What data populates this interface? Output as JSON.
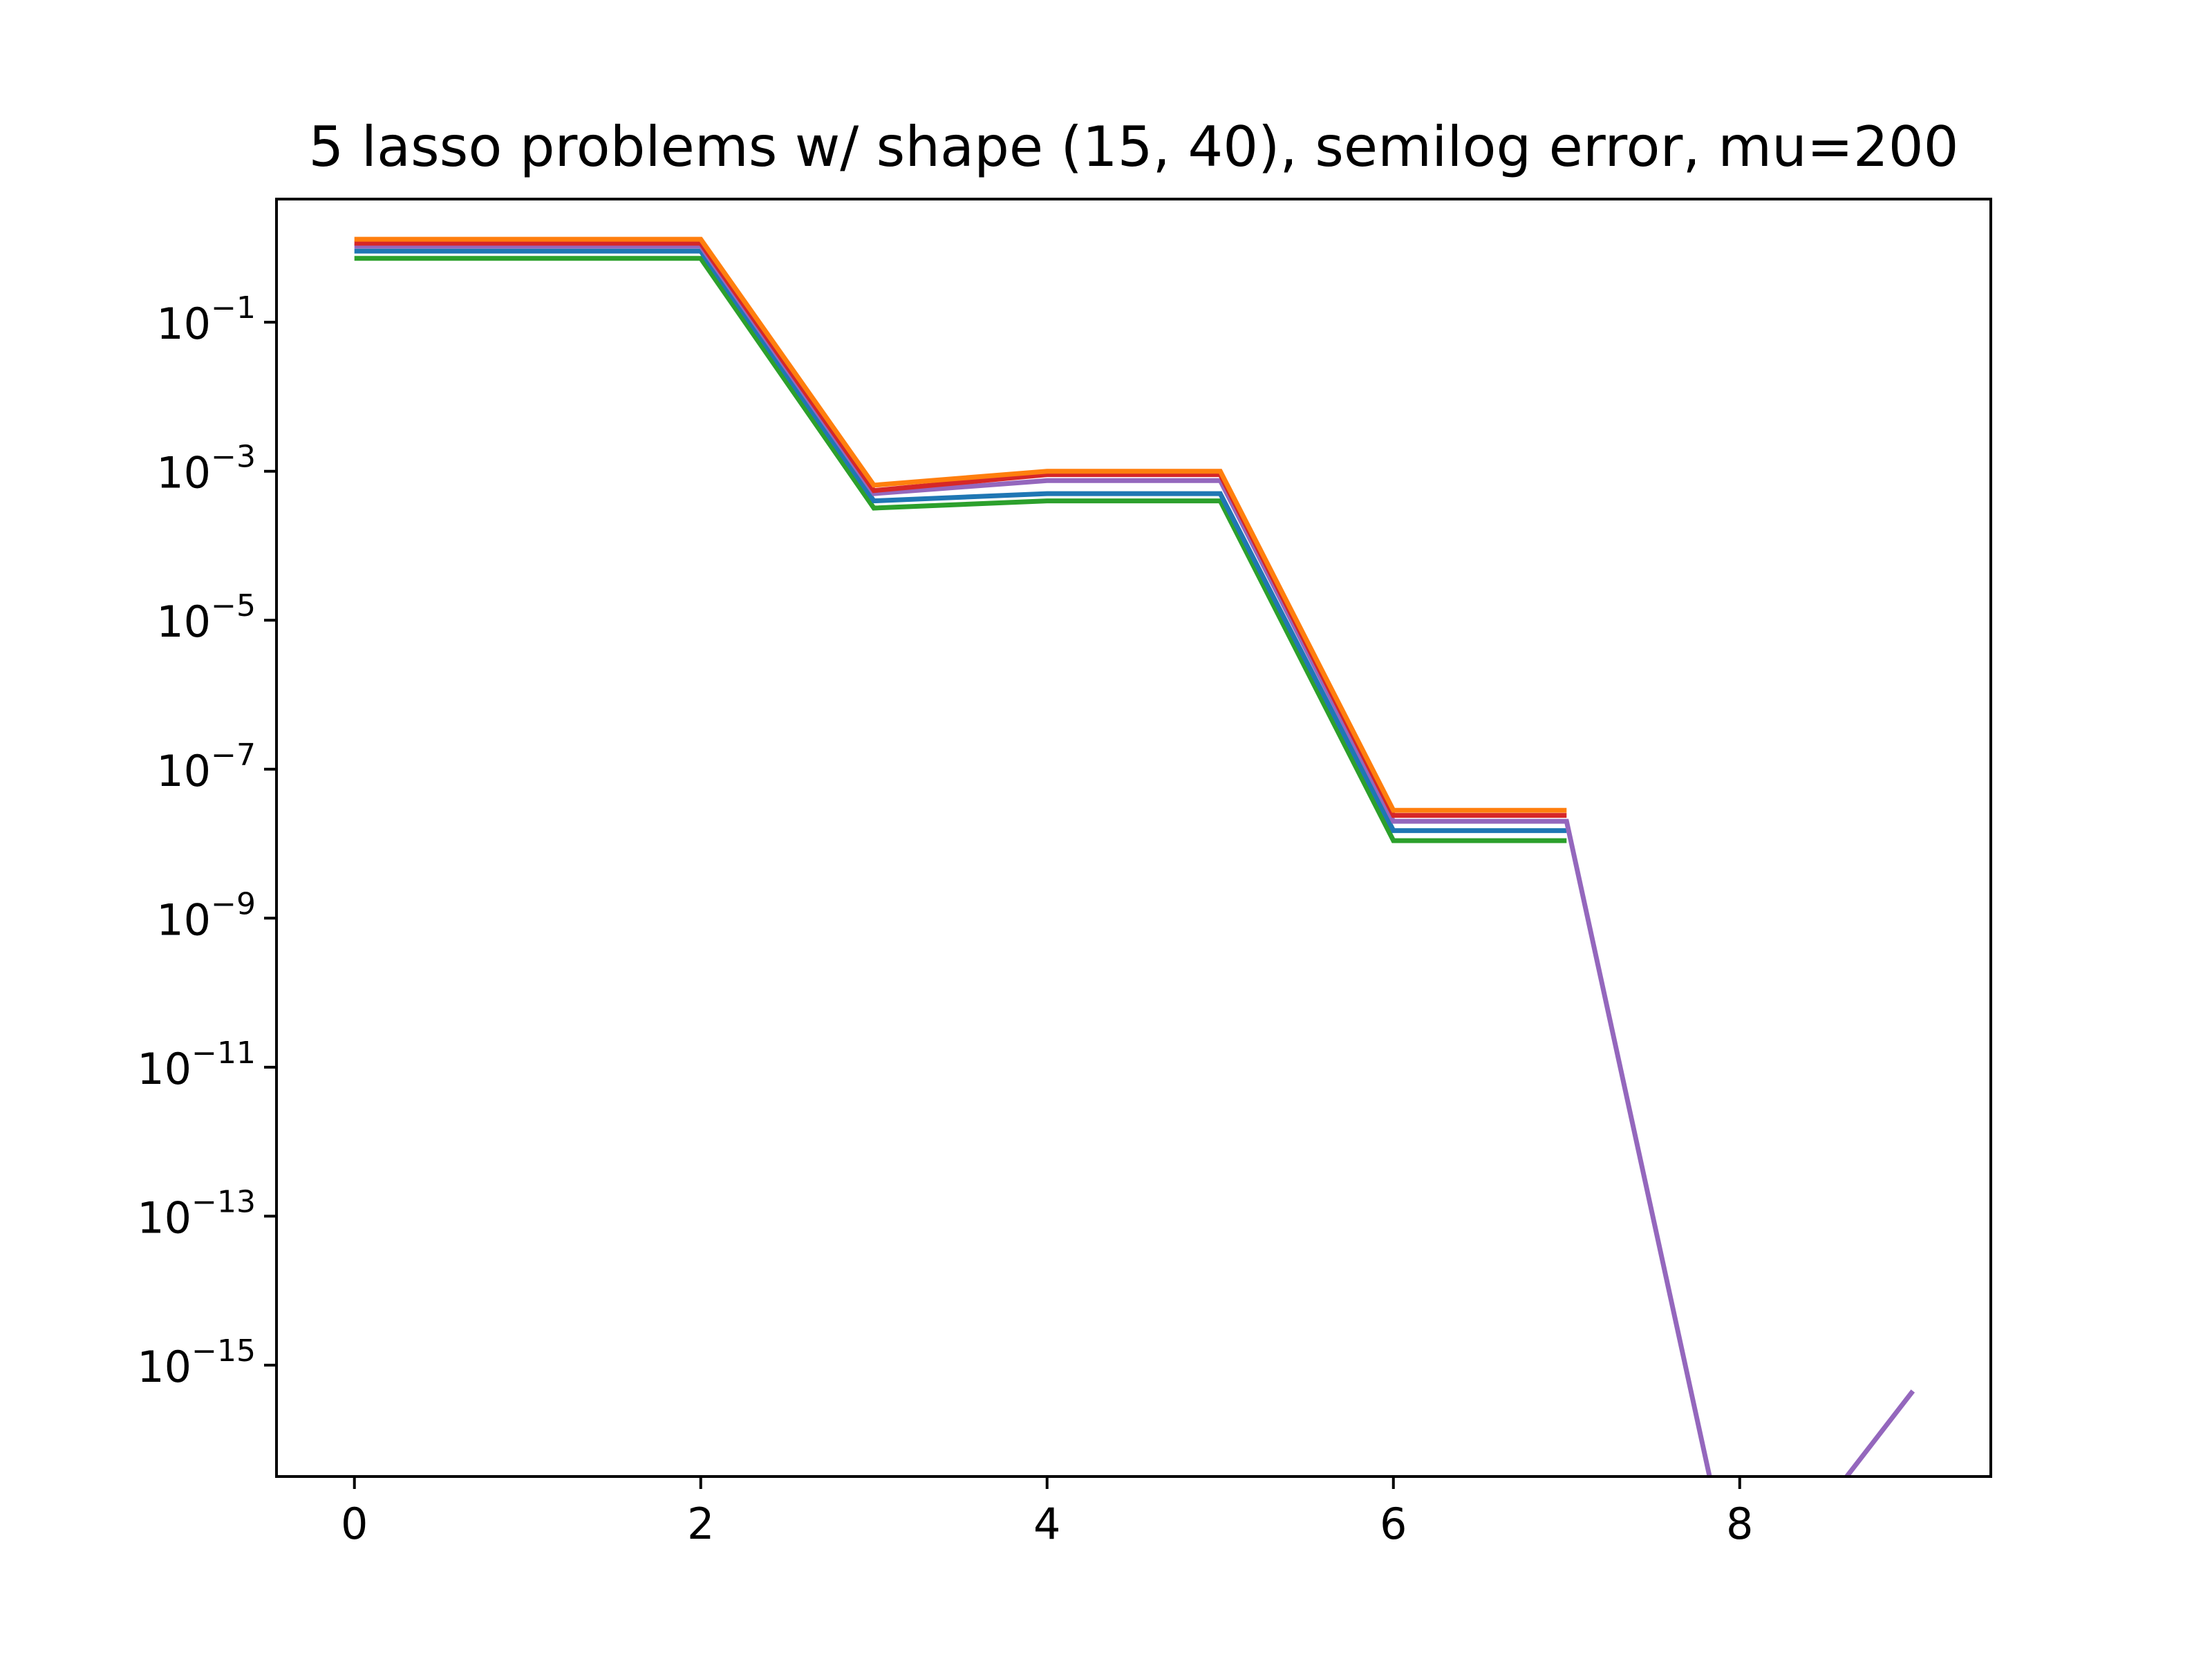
{
  "chart_data": {
    "type": "line",
    "title": "5 lasso problems w/ shape (15, 40), semilog error, mu=200",
    "xlabel": "",
    "ylabel": "",
    "yscale": "log",
    "xlim": [
      -0.45,
      9.45
    ],
    "ylim": [
      3.2e-17,
      4.5
    ],
    "x_ticks": [
      {
        "value": 0,
        "label": "0"
      },
      {
        "value": 2,
        "label": "2"
      },
      {
        "value": 4,
        "label": "4"
      },
      {
        "value": 6,
        "label": "6"
      },
      {
        "value": 8,
        "label": "8"
      }
    ],
    "y_ticks": [
      {
        "value": 0.1,
        "base": "10",
        "exp": "−1"
      },
      {
        "value": 0.001,
        "base": "10",
        "exp": "−3"
      },
      {
        "value": 1e-05,
        "base": "10",
        "exp": "−5"
      },
      {
        "value": 1e-07,
        "base": "10",
        "exp": "−7"
      },
      {
        "value": 1e-09,
        "base": "10",
        "exp": "−9"
      },
      {
        "value": 1e-11,
        "base": "10",
        "exp": "−11"
      },
      {
        "value": 1e-13,
        "base": "10",
        "exp": "−13"
      },
      {
        "value": 1e-15,
        "base": "10",
        "exp": "−15"
      }
    ],
    "grid": false,
    "legend": "none",
    "x": [
      0,
      1,
      2,
      3,
      4,
      5,
      6,
      7,
      8,
      9
    ],
    "series": [
      {
        "color": "#2ca02c",
        "values": [
          0.72,
          0.72,
          0.72,
          0.00032,
          0.0004,
          0.0004,
          1.1e-08,
          1.1e-08,
          null,
          null
        ]
      },
      {
        "color": "#1f77b4",
        "values": [
          0.9,
          0.9,
          0.9,
          0.0004,
          0.0005,
          0.0005,
          1.5e-08,
          1.5e-08,
          null,
          null
        ]
      },
      {
        "color": "#9467bd",
        "values": [
          1.05,
          1.05,
          1.05,
          0.0005,
          0.00075,
          0.00075,
          2e-08,
          2e-08,
          0,
          4.5e-16
        ]
      },
      {
        "color": "#d62728",
        "values": [
          1.15,
          1.15,
          1.15,
          0.00055,
          0.0009,
          0.0009,
          2.4e-08,
          2.4e-08,
          null,
          null
        ]
      },
      {
        "color": "#ff7f0e",
        "values": [
          1.3,
          1.3,
          1.3,
          0.00065,
          0.001,
          0.001,
          2.8e-08,
          2.8e-08,
          null,
          null
        ]
      }
    ]
  }
}
